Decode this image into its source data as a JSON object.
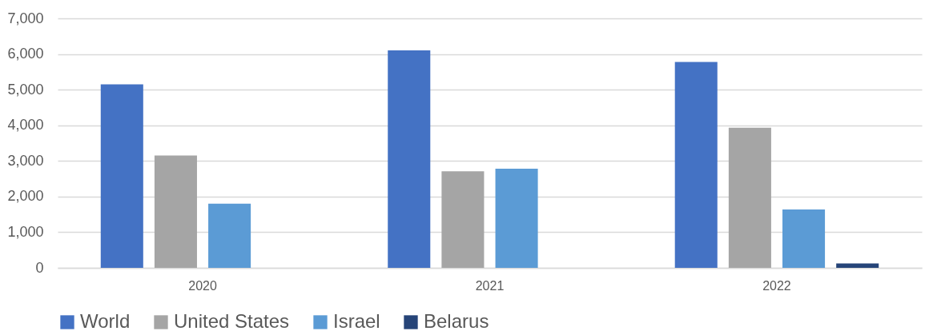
{
  "chart_data": {
    "type": "bar",
    "categories": [
      "2020",
      "2021",
      "2022"
    ],
    "series": [
      {
        "name": "World",
        "color": "#4472c4",
        "values": [
          5150,
          6100,
          5775
        ]
      },
      {
        "name": "United States",
        "color": "#a5a5a5",
        "values": [
          3150,
          2710,
          3930
        ]
      },
      {
        "name": "Israel",
        "color": "#5b9bd5",
        "values": [
          1800,
          2780,
          1640
        ]
      },
      {
        "name": "Belarus",
        "color": "#264478",
        "values": [
          null,
          null,
          125
        ]
      }
    ],
    "ylim": [
      0,
      7000
    ],
    "yticks": [
      {
        "value": 0,
        "label": "0"
      },
      {
        "value": 1000,
        "label": "1,000"
      },
      {
        "value": 2000,
        "label": "2,000"
      },
      {
        "value": 3000,
        "label": "3,000"
      },
      {
        "value": 4000,
        "label": "4,000"
      },
      {
        "value": 5000,
        "label": "5,000"
      },
      {
        "value": 6000,
        "label": "6,000"
      },
      {
        "value": 7000,
        "label": "7,000"
      }
    ],
    "grid": "y",
    "legend": "bottom"
  }
}
